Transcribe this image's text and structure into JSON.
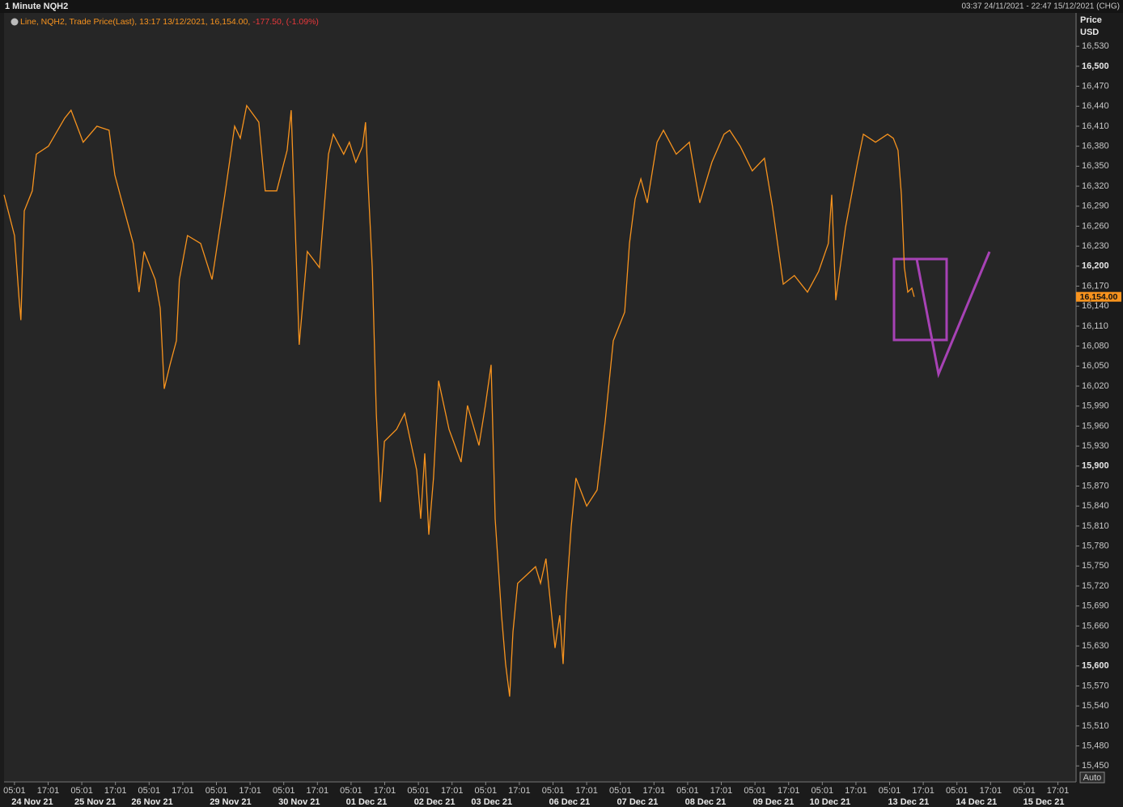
{
  "chart_data": {
    "type": "line",
    "title": "1 Minute NQH2",
    "subtitle": "03:37 24/11/2021 - 22:47 15/12/2021 (CHG)",
    "y_axis_label": "Price",
    "y_axis_unit": "USD",
    "legend_info": "13:17 13/12/2021, 16,154.00,",
    "legend_change": "-177.50, (-1.09%)",
    "auto_button": "Auto",
    "last_price": {
      "value": 16154,
      "label": "16,154.00"
    },
    "ylim": [
      15426,
      16580
    ],
    "xlim": [
      -0.31,
      31.54
    ],
    "yticks": [
      {
        "value": 16530,
        "label": "16,530"
      },
      {
        "value": 16500,
        "label": "16,500"
      },
      {
        "value": 16470,
        "label": "16,470"
      },
      {
        "value": 16440,
        "label": "16,440"
      },
      {
        "value": 16410,
        "label": "16,410"
      },
      {
        "value": 16380,
        "label": "16,380"
      },
      {
        "value": 16350,
        "label": "16,350"
      },
      {
        "value": 16320,
        "label": "16,320"
      },
      {
        "value": 16290,
        "label": "16,290"
      },
      {
        "value": 16260,
        "label": "16,260"
      },
      {
        "value": 16230,
        "label": "16,230"
      },
      {
        "value": 16200,
        "label": "16,200"
      },
      {
        "value": 16170,
        "label": "16,170"
      },
      {
        "value": 16140,
        "label": "16,140"
      },
      {
        "value": 16110,
        "label": "16,110"
      },
      {
        "value": 16080,
        "label": "16,080"
      },
      {
        "value": 16050,
        "label": "16,050"
      },
      {
        "value": 16020,
        "label": "16,020"
      },
      {
        "value": 15990,
        "label": "15,990"
      },
      {
        "value": 15960,
        "label": "15,960"
      },
      {
        "value": 15930,
        "label": "15,930"
      },
      {
        "value": 15900,
        "label": "15,900"
      },
      {
        "value": 15870,
        "label": "15,870"
      },
      {
        "value": 15840,
        "label": "15,840"
      },
      {
        "value": 15810,
        "label": "15,810"
      },
      {
        "value": 15780,
        "label": "15,780"
      },
      {
        "value": 15750,
        "label": "15,750"
      },
      {
        "value": 15720,
        "label": "15,720"
      },
      {
        "value": 15690,
        "label": "15,690"
      },
      {
        "value": 15660,
        "label": "15,660"
      },
      {
        "value": 15630,
        "label": "15,630"
      },
      {
        "value": 15600,
        "label": "15,600"
      },
      {
        "value": 15570,
        "label": "15,570"
      },
      {
        "value": 15540,
        "label": "15,540"
      },
      {
        "value": 15510,
        "label": "15,510"
      },
      {
        "value": 15480,
        "label": "15,480"
      },
      {
        "value": 15450,
        "label": "15,450"
      }
    ],
    "xticks": [
      {
        "value": 0,
        "label": "05:01"
      },
      {
        "value": 1,
        "label": "17:01"
      },
      {
        "value": 2,
        "label": "05:01"
      },
      {
        "value": 3,
        "label": "17:01"
      },
      {
        "value": 4,
        "label": "05:01"
      },
      {
        "value": 5,
        "label": "17:01"
      },
      {
        "value": 6,
        "label": "05:01"
      },
      {
        "value": 7,
        "label": "17:01"
      },
      {
        "value": 8,
        "label": "05:01"
      },
      {
        "value": 9,
        "label": "17:01"
      },
      {
        "value": 10,
        "label": "05:01"
      },
      {
        "value": 11,
        "label": "17:01"
      },
      {
        "value": 12,
        "label": "05:01"
      },
      {
        "value": 13,
        "label": "17:01"
      },
      {
        "value": 14,
        "label": "05:01"
      },
      {
        "value": 15,
        "label": "17:01"
      },
      {
        "value": 16,
        "label": "05:01"
      },
      {
        "value": 17,
        "label": "17:01"
      },
      {
        "value": 18,
        "label": "05:01"
      },
      {
        "value": 19,
        "label": "17:01"
      },
      {
        "value": 20,
        "label": "05:01"
      },
      {
        "value": 21,
        "label": "17:01"
      },
      {
        "value": 22,
        "label": "05:01"
      },
      {
        "value": 23,
        "label": "17:01"
      },
      {
        "value": 24,
        "label": "05:01"
      },
      {
        "value": 25,
        "label": "17:01"
      },
      {
        "value": 26,
        "label": "05:01"
      },
      {
        "value": 27,
        "label": "17:01"
      },
      {
        "value": 28,
        "label": "05:01"
      },
      {
        "value": 29,
        "label": "17:01"
      },
      {
        "value": 30,
        "label": "05:01"
      },
      {
        "value": 31,
        "label": "17:01"
      }
    ],
    "date_ticks": [
      {
        "value": 0.53,
        "label": "24 Nov 21"
      },
      {
        "value": 2.4,
        "label": "25 Nov 21"
      },
      {
        "value": 4.09,
        "label": "26 Nov 21"
      },
      {
        "value": 6.42,
        "label": "29 Nov 21"
      },
      {
        "value": 8.46,
        "label": "30 Nov 21"
      },
      {
        "value": 10.46,
        "label": "01 Dec 21"
      },
      {
        "value": 12.48,
        "label": "02 Dec 21"
      },
      {
        "value": 14.18,
        "label": "03 Dec 21"
      },
      {
        "value": 16.49,
        "label": "06 Dec 21"
      },
      {
        "value": 18.51,
        "label": "07 Dec 21"
      },
      {
        "value": 20.53,
        "label": "08 Dec 21"
      },
      {
        "value": 22.55,
        "label": "09 Dec 21"
      },
      {
        "value": 24.23,
        "label": "10 Dec 21"
      },
      {
        "value": 26.56,
        "label": "13 Dec 21"
      },
      {
        "value": 28.58,
        "label": "14 Dec 21"
      },
      {
        "value": 30.58,
        "label": "15 Dec 21"
      }
    ],
    "series": [
      {
        "name": "Line, NQH2, Trade Price(Last),",
        "color": "#f7931e",
        "x": [
          -0.31,
          0,
          0.14,
          0.19,
          0.29,
          0.53,
          0.65,
          1.01,
          1.49,
          1.68,
          2.04,
          2.45,
          2.81,
          2.98,
          3.17,
          3.53,
          3.7,
          3.85,
          4.18,
          4.33,
          4.45,
          4.62,
          4.81,
          4.9,
          5.14,
          5.53,
          5.87,
          6.25,
          6.54,
          6.71,
          6.9,
          7.26,
          7.45,
          7.79,
          8.1,
          8.22,
          8.34,
          8.46,
          8.7,
          9.06,
          9.33,
          9.47,
          9.78,
          9.95,
          10.14,
          10.34,
          10.43,
          10.5,
          10.63,
          10.75,
          10.87,
          10.99,
          11.35,
          11.59,
          11.95,
          12.07,
          12.19,
          12.31,
          12.45,
          12.6,
          12.91,
          13.27,
          13.46,
          13.8,
          13.99,
          14.16,
          14.28,
          14.47,
          14.59,
          14.71,
          14.81,
          14.95,
          15.48,
          15.63,
          15.79,
          16.06,
          16.2,
          16.3,
          16.39,
          16.54,
          16.68,
          17,
          17.31,
          17.55,
          17.79,
          18.13,
          18.27,
          18.44,
          18.61,
          18.8,
          19.09,
          19.28,
          19.66,
          20.05,
          20.36,
          20.72,
          21.08,
          21.25,
          21.56,
          21.92,
          22.28,
          22.52,
          22.84,
          23.17,
          23.56,
          23.89,
          24.18,
          24.28,
          24.4,
          24.69,
          25.05,
          25.22,
          25.58,
          25.94,
          26.11,
          26.25,
          26.35,
          26.44,
          26.54,
          26.66,
          26.73
        ],
        "values": [
          16307,
          16246,
          16149,
          16119,
          16283,
          16313,
          16368,
          16380,
          16422,
          16434,
          16386,
          16410,
          16404,
          16337,
          16301,
          16234,
          16161,
          16222,
          16180,
          16137,
          16016,
          16052,
          16088,
          16180,
          16246,
          16234,
          16180,
          16307,
          16410,
          16392,
          16441,
          16416,
          16313,
          16313,
          16374,
          16434,
          16258,
          16082,
          16222,
          16198,
          16368,
          16398,
          16368,
          16386,
          16356,
          16380,
          16416,
          16331,
          16198,
          15979,
          15846,
          15937,
          15955,
          15979,
          15894,
          15821,
          15919,
          15797,
          15882,
          16028,
          15955,
          15906,
          15991,
          15931,
          15991,
          16052,
          15821,
          15676,
          15603,
          15554,
          15651,
          15724,
          15749,
          15724,
          15761,
          15627,
          15676,
          15603,
          15700,
          15809,
          15882,
          15840,
          15864,
          15967,
          16088,
          16131,
          16234,
          16301,
          16331,
          16295,
          16386,
          16404,
          16368,
          16386,
          16295,
          16356,
          16398,
          16404,
          16380,
          16343,
          16362,
          16289,
          16173,
          16186,
          16161,
          16192,
          16234,
          16307,
          16149,
          16258,
          16356,
          16398,
          16386,
          16398,
          16392,
          16374,
          16307,
          16198,
          16161,
          16167,
          16154
        ]
      }
    ]
  }
}
